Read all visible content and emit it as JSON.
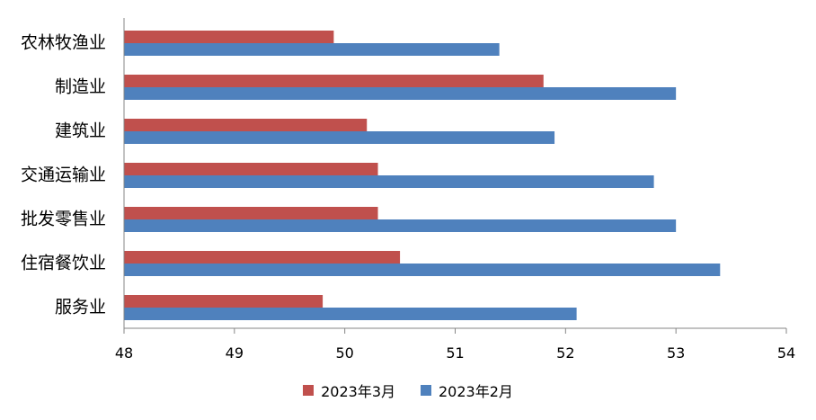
{
  "chart_data": {
    "type": "bar",
    "orientation": "horizontal",
    "categories": [
      "农林牧渔业",
      "制造业",
      "建筑业",
      "交通运输业",
      "批发零售业",
      "住宿餐饮业",
      "服务业"
    ],
    "series": [
      {
        "name": "2023年3月",
        "color": "#c0504d",
        "values": [
          49.9,
          51.8,
          50.2,
          50.3,
          50.3,
          50.5,
          49.8
        ]
      },
      {
        "name": "2023年2月",
        "color": "#4f81bd",
        "values": [
          51.4,
          53.0,
          51.9,
          52.8,
          53.0,
          53.4,
          52.1
        ]
      }
    ],
    "xlim": [
      48,
      54
    ],
    "xticks": [
      48,
      49,
      50,
      51,
      52,
      53,
      54
    ],
    "grid": false,
    "legend_position": "bottom"
  }
}
